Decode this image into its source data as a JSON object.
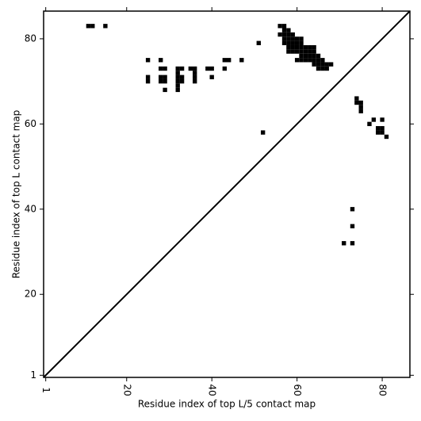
{
  "chart_data": {
    "type": "scatter",
    "marker": "square",
    "color": "#000000",
    "xlabel": "Residue index of top L/5 contact map",
    "ylabel": "Residue index of top L contact map",
    "xlim": [
      0.5,
      86.5
    ],
    "ylim": [
      0.5,
      86.5
    ],
    "xticks": [
      1,
      20,
      40,
      60,
      80
    ],
    "yticks": [
      1,
      20,
      40,
      60,
      80
    ],
    "diagonal": true,
    "x": [
      11,
      12,
      15,
      25,
      25,
      25,
      28,
      28,
      29,
      28,
      29,
      28,
      29,
      29,
      32,
      33,
      32,
      32,
      32,
      32,
      32,
      33,
      33,
      35,
      36,
      36,
      36,
      36,
      39,
      40,
      40,
      43,
      43,
      44,
      47,
      51,
      52,
      56,
      57,
      57,
      58,
      56,
      57,
      58,
      59,
      57,
      58,
      59,
      60,
      61,
      57,
      58,
      59,
      60,
      61,
      58,
      59,
      60,
      61,
      62,
      63,
      64,
      58,
      59,
      60,
      61,
      62,
      63,
      64,
      61,
      62,
      63,
      64,
      65,
      60,
      61,
      62,
      63,
      64,
      65,
      66,
      64,
      65,
      66,
      67,
      68,
      65,
      66,
      67,
      74,
      74,
      75,
      75,
      75,
      77,
      78,
      80,
      79,
      80,
      79,
      80,
      81,
      73,
      73,
      71,
      73
    ],
    "y": [
      83,
      83,
      83,
      75,
      71,
      70,
      75,
      73,
      73,
      71,
      71,
      70,
      70,
      68,
      73,
      73,
      72,
      71,
      70,
      69,
      68,
      71,
      70,
      73,
      73,
      72,
      71,
      70,
      73,
      73,
      71,
      73,
      75,
      75,
      75,
      79,
      58,
      83,
      83,
      82,
      82,
      81,
      81,
      81,
      81,
      80,
      80,
      80,
      80,
      80,
      79,
      79,
      79,
      79,
      79,
      78,
      78,
      78,
      78,
      78,
      78,
      78,
      77,
      77,
      77,
      77,
      77,
      77,
      77,
      76,
      76,
      76,
      76,
      76,
      75,
      75,
      75,
      75,
      75,
      75,
      75,
      74,
      74,
      74,
      74,
      74,
      73,
      73,
      73,
      66,
      65,
      65,
      64,
      63,
      60,
      61,
      61,
      59,
      59,
      58,
      58,
      57,
      40,
      36,
      32,
      32
    ]
  }
}
